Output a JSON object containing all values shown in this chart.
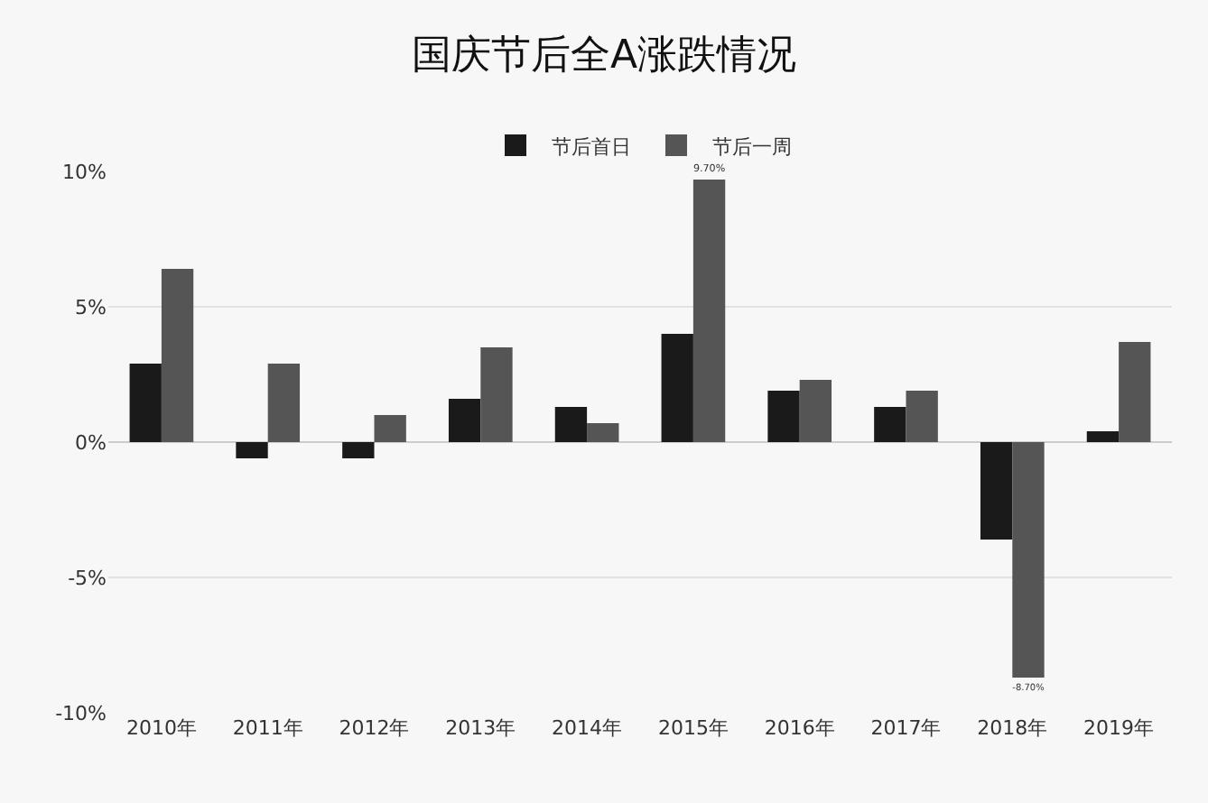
{
  "chart_data": {
    "type": "bar",
    "title": "国庆节后全A涨跌情况",
    "categories": [
      "2010年",
      "2011年",
      "2012年",
      "2013年",
      "2014年",
      "2015年",
      "2016年",
      "2017年",
      "2018年",
      "2019年"
    ],
    "series": [
      {
        "name": "节后首日",
        "color": "#1a1a1a",
        "values": [
          2.9,
          -0.6,
          -0.6,
          1.6,
          1.3,
          4.0,
          1.9,
          1.3,
          -3.6,
          0.4
        ]
      },
      {
        "name": "节后一周",
        "color": "#555555",
        "values": [
          6.4,
          2.9,
          1.0,
          3.5,
          0.7,
          9.7,
          2.3,
          1.9,
          -8.7,
          3.7
        ],
        "value_labels": [
          null,
          null,
          null,
          null,
          null,
          "9.70%",
          null,
          null,
          "-8.70%",
          null
        ]
      }
    ],
    "ylim": [
      -10,
      10
    ],
    "yticks": [
      {
        "value": -10,
        "label": "-10%"
      },
      {
        "value": -5,
        "label": "-5%"
      },
      {
        "value": 0,
        "label": "0%"
      },
      {
        "value": 5,
        "label": "5%"
      },
      {
        "value": 10,
        "label": "10%"
      }
    ],
    "grid": "y",
    "legend": "top"
  }
}
